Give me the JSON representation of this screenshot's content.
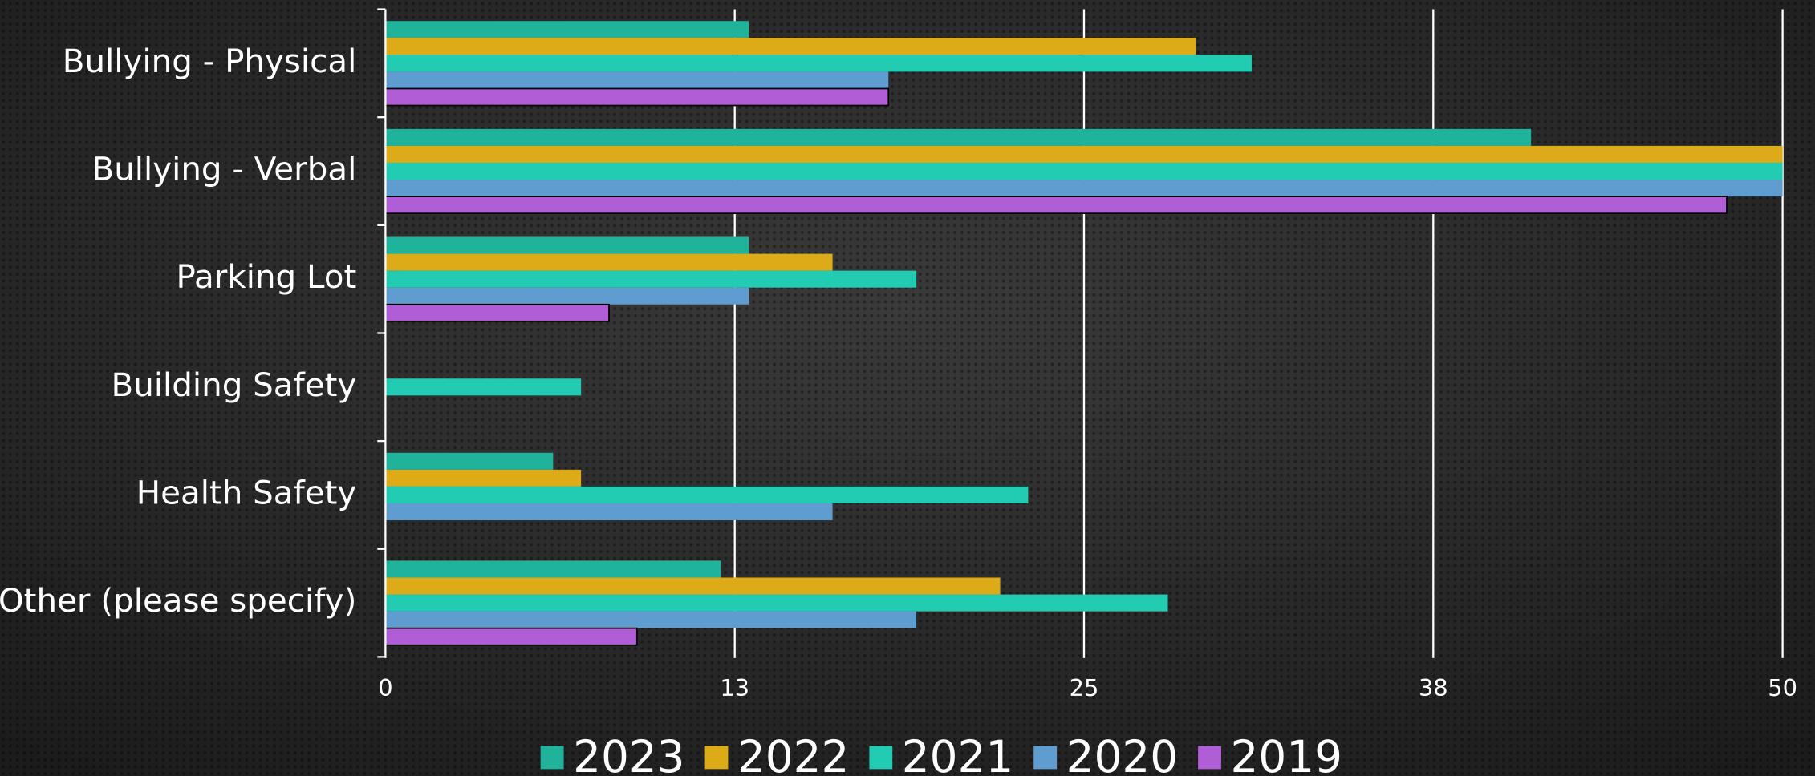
{
  "chart_data": {
    "type": "bar",
    "orientation": "horizontal",
    "categories": [
      "Bullying - Physical",
      "Bullying - Verbal",
      "Parking Lot",
      "Building Safety",
      "Health Safety",
      "Other (please specify)"
    ],
    "series": [
      {
        "name": "2023",
        "color": "#1fb39c",
        "values": [
          13,
          41,
          13,
          0,
          6,
          12
        ]
      },
      {
        "name": "2022",
        "color": "#dcab17",
        "values": [
          29,
          50,
          16,
          0,
          7,
          22
        ]
      },
      {
        "name": "2021",
        "color": "#22ccb3",
        "values": [
          31,
          50,
          19,
          7,
          23,
          28
        ]
      },
      {
        "name": "2020",
        "color": "#5f9dd0",
        "values": [
          18,
          50,
          13,
          0,
          16,
          19
        ]
      },
      {
        "name": "2019",
        "color": "#b05ed6",
        "values": [
          18,
          48,
          8,
          0,
          0,
          9
        ]
      }
    ],
    "xlim": [
      0,
      50
    ],
    "xticks": [
      0,
      {
        "value": 12.5,
        "label": "13"
      },
      25,
      {
        "value": 37.5,
        "label": "38"
      },
      50
    ],
    "grid": true,
    "legend": "bottom"
  }
}
